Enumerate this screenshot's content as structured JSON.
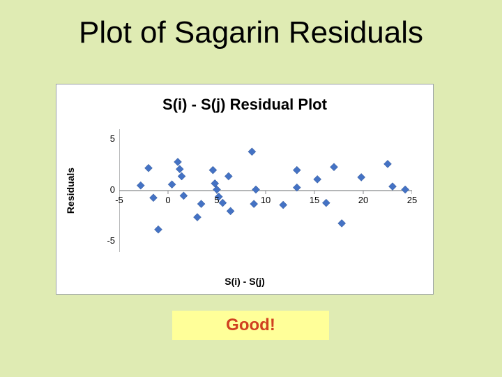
{
  "title": "Plot of Sagarin Residuals",
  "badge": "Good!",
  "chart": {
    "type": "scatter",
    "title": "S(i) - S(j)  Residual Plot",
    "xlabel": "S(i) - S(j)",
    "ylabel": "Residuals",
    "background_color": "#ffffff",
    "border_color": "#9aa0a6",
    "axis_color": "#888a8c",
    "tick_color": "#888a8c",
    "tick_fontsize": 13,
    "label_fontsize": 14,
    "title_fontsize": 22,
    "xlim": [
      -5,
      25
    ],
    "ylim": [
      -6,
      6
    ],
    "xticks": [
      -5,
      0,
      5,
      10,
      15,
      20,
      25
    ],
    "yticks": [
      -5,
      0,
      5
    ],
    "marker": {
      "shape": "diamond",
      "size": 11,
      "fill": "#4472c4",
      "stroke": "#2e528f"
    },
    "points": [
      [
        -2.8,
        0.5
      ],
      [
        -2.0,
        2.2
      ],
      [
        -1.5,
        -0.7
      ],
      [
        -1.0,
        -3.8
      ],
      [
        0.4,
        0.6
      ],
      [
        1.0,
        2.8
      ],
      [
        1.2,
        2.1
      ],
      [
        1.4,
        1.4
      ],
      [
        1.6,
        -0.5
      ],
      [
        3.0,
        -2.6
      ],
      [
        3.4,
        -1.3
      ],
      [
        4.6,
        2.0
      ],
      [
        4.8,
        0.7
      ],
      [
        5.0,
        0.1
      ],
      [
        5.2,
        -0.6
      ],
      [
        5.6,
        -1.2
      ],
      [
        6.2,
        1.4
      ],
      [
        6.4,
        -2.0
      ],
      [
        8.6,
        3.8
      ],
      [
        8.8,
        -1.3
      ],
      [
        9.0,
        0.1
      ],
      [
        11.8,
        -1.4
      ],
      [
        13.2,
        2.0
      ],
      [
        13.2,
        0.3
      ],
      [
        15.3,
        1.1
      ],
      [
        16.2,
        -1.2
      ],
      [
        17.0,
        2.3
      ],
      [
        17.8,
        -3.2
      ],
      [
        19.8,
        1.3
      ],
      [
        22.5,
        2.6
      ],
      [
        23.0,
        0.4
      ],
      [
        24.3,
        0.1
      ]
    ]
  },
  "slide_bg": "#dfebb3",
  "badge_bg": "#ffff99",
  "badge_text_color": "#d04020"
}
